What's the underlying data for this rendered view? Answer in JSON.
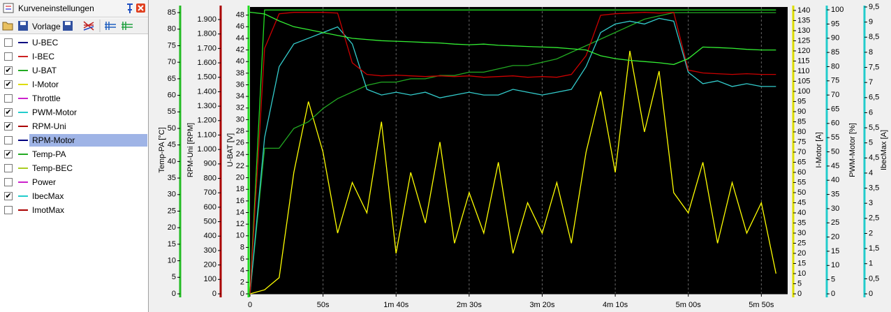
{
  "panel": {
    "title": "Kurveneinstellungen",
    "template_button": "Vorlage",
    "selected": 7,
    "items": [
      {
        "name": "U-BEC",
        "checked": false,
        "color": "#000080"
      },
      {
        "name": "I-BEC",
        "checked": false,
        "color": "#cc2222"
      },
      {
        "name": "U-BAT",
        "checked": true,
        "color": "#22aa22"
      },
      {
        "name": "I-Motor",
        "checked": true,
        "color": "#dddd00"
      },
      {
        "name": "Throttle",
        "checked": false,
        "color": "#cc22cc"
      },
      {
        "name": "PWM-Motor",
        "checked": true,
        "color": "#22cccc"
      },
      {
        "name": "RPM-Uni",
        "checked": true,
        "color": "#aa0000"
      },
      {
        "name": "RPM-Motor",
        "checked": false,
        "color": "#000080"
      },
      {
        "name": "Temp-PA",
        "checked": true,
        "color": "#22aa22"
      },
      {
        "name": "Temp-BEC",
        "checked": false,
        "color": "#aacc22"
      },
      {
        "name": "Power",
        "checked": false,
        "color": "#cc22cc"
      },
      {
        "name": "IbecMax",
        "checked": true,
        "color": "#22cccc"
      },
      {
        "name": "ImotMax",
        "checked": false,
        "color": "#aa0000"
      }
    ]
  },
  "chart_data": {
    "type": "line",
    "xlim": [
      0,
      368
    ],
    "xticks": [
      0,
      {
        "value": 50,
        "label": "50s"
      },
      {
        "value": 100,
        "label": "1m 40s"
      },
      {
        "value": 150,
        "label": "2m 30s"
      },
      {
        "value": 200,
        "label": "3m 20s"
      },
      {
        "value": 250,
        "label": "4m 10s"
      },
      {
        "value": 300,
        "label": "5m 00s"
      },
      {
        "value": 350,
        "label": "5m 50s"
      }
    ],
    "grid": true,
    "axes": [
      {
        "label": "Temp-PA [°C]",
        "color": "#22bb22",
        "ylim": [
          0,
          86.7
        ],
        "yticks": [
          0,
          5,
          10,
          15,
          20,
          25,
          30,
          35,
          40,
          45,
          50,
          55,
          60,
          65,
          70,
          75,
          80,
          85
        ]
      },
      {
        "label": "RPM-Uni [RPM]",
        "color": "#aa0000",
        "ylim": [
          0,
          1987
        ],
        "yticks": [
          0,
          100,
          200,
          300,
          400,
          500,
          600,
          700,
          800,
          900,
          {
            "value": 1000,
            "label": "1.000"
          },
          {
            "value": 1100,
            "label": "1.100"
          },
          {
            "value": 1200,
            "label": "1.200"
          },
          {
            "value": 1300,
            "label": "1.300"
          },
          {
            "value": 1400,
            "label": "1.400"
          },
          {
            "value": 1500,
            "label": "1.500"
          },
          {
            "value": 1600,
            "label": "1.600"
          },
          {
            "value": 1700,
            "label": "1.700"
          },
          {
            "value": 1800,
            "label": "1.800"
          },
          {
            "value": 1900,
            "label": "1.900"
          }
        ]
      },
      {
        "label": "U-BAT [V]",
        "color": "#22dd22",
        "ylim": [
          0,
          49.4
        ],
        "yticks": [
          0,
          2,
          4,
          6,
          8,
          10,
          12,
          14,
          16,
          18,
          20,
          22,
          24,
          26,
          28,
          30,
          32,
          34,
          36,
          38,
          40,
          42,
          44,
          46,
          48
        ]
      },
      {
        "label": "I-Motor [A]",
        "color": "#dddd00",
        "ylim": [
          0,
          141.7
        ],
        "yticks": [
          0,
          5,
          10,
          15,
          20,
          25,
          30,
          35,
          40,
          45,
          50,
          55,
          60,
          65,
          70,
          75,
          80,
          85,
          90,
          95,
          100,
          105,
          110,
          115,
          120,
          125,
          130,
          135,
          140
        ]
      },
      {
        "label": "PWM-Motor [%]",
        "color": "#22cccc",
        "ylim": [
          0,
          101
        ],
        "yticks": [
          0,
          5,
          10,
          15,
          20,
          25,
          30,
          35,
          40,
          45,
          50,
          55,
          60,
          65,
          70,
          75,
          80,
          85,
          90,
          95,
          100
        ]
      },
      {
        "label": "IbecMax [A]",
        "color": "#22cccc",
        "ylim": [
          0,
          9.5
        ],
        "yticks": [
          0,
          {
            "value": 0.5,
            "label": "0,5"
          },
          1,
          {
            "value": 1.5,
            "label": "1,5"
          },
          2,
          {
            "value": 2.5,
            "label": "2,5"
          },
          3,
          {
            "value": 3.5,
            "label": "3,5"
          },
          4,
          {
            "value": 4.5,
            "label": "4,5"
          },
          5,
          {
            "value": 5.5,
            "label": "5,5"
          },
          6,
          {
            "value": 6.5,
            "label": "6,5"
          },
          7,
          {
            "value": 7.5,
            "label": "7,5"
          },
          8,
          {
            "value": 8.5,
            "label": "8,5"
          },
          9,
          {
            "value": 9.5,
            "label": "9,5"
          }
        ]
      }
    ],
    "x": [
      0,
      10,
      20,
      30,
      40,
      50,
      60,
      70,
      80,
      90,
      100,
      110,
      120,
      130,
      140,
      150,
      160,
      170,
      180,
      190,
      200,
      210,
      220,
      230,
      240,
      250,
      260,
      270,
      280,
      290,
      300,
      310,
      320,
      330,
      340,
      350,
      360
    ],
    "series": [
      {
        "name": "I-Motor",
        "axis": 3,
        "color": "#ffff00",
        "values": [
          0,
          2,
          8,
          60,
          95,
          70,
          30,
          55,
          40,
          85,
          20,
          60,
          35,
          75,
          25,
          50,
          30,
          65,
          20,
          45,
          30,
          55,
          25,
          70,
          100,
          60,
          120,
          80,
          110,
          50,
          40,
          65,
          25,
          55,
          30,
          45,
          10
        ]
      },
      {
        "name": "Temp-PA",
        "axis": 0,
        "color": "#22aa22",
        "values": [
          0,
          44,
          44,
          50,
          52,
          56,
          59,
          61,
          63,
          64,
          64,
          65,
          65,
          66,
          66,
          67,
          67,
          68,
          69,
          69,
          70,
          71,
          73,
          75,
          77,
          79,
          81,
          83,
          84,
          85,
          85,
          85,
          85,
          85,
          85,
          85,
          85
        ]
      },
      {
        "name": "IbecMax",
        "axis": 5,
        "color": "#22dd22",
        "values": [
          0,
          9.4,
          9.4,
          9.4,
          9.4,
          9.4,
          9.4,
          9.4,
          9.4,
          9.4,
          9.4,
          9.4,
          9.4,
          9.4,
          9.4,
          9.4,
          9.4,
          9.4,
          9.4,
          9.4,
          9.4,
          9.4,
          9.4,
          9.4,
          9.4,
          9.4,
          9.4,
          9.4,
          9.4,
          9.4,
          9.4,
          9.4,
          9.4,
          9.4,
          9.4,
          9.4,
          9.4
        ]
      },
      {
        "name": "PWM-Motor",
        "axis": 4,
        "color": "#33cccc",
        "values": [
          0,
          55,
          80,
          88,
          90,
          92,
          94,
          88,
          72,
          70,
          71,
          70,
          71,
          69,
          70,
          71,
          70,
          70,
          72,
          71,
          70,
          71,
          72,
          80,
          92,
          95,
          96,
          95,
          97,
          96,
          78,
          74,
          75,
          73,
          74,
          73,
          73
        ]
      },
      {
        "name": "RPM-Uni",
        "axis": 1,
        "color": "#cc0000",
        "values": [
          0,
          1700,
          1940,
          1950,
          1950,
          1950,
          1945,
          1600,
          1520,
          1510,
          1515,
          1510,
          1505,
          1510,
          1505,
          1510,
          1500,
          1505,
          1510,
          1500,
          1505,
          1500,
          1520,
          1650,
          1930,
          1940,
          1945,
          1950,
          1945,
          1950,
          1550,
          1530,
          1525,
          1520,
          1525,
          1520,
          1520
        ]
      },
      {
        "name": "U-BAT",
        "axis": 2,
        "color": "#33ee33",
        "values": [
          48.5,
          48.2,
          47,
          46,
          45.5,
          45,
          44.5,
          44,
          43.8,
          43.6,
          43.5,
          43.4,
          43.3,
          43.2,
          43,
          42.9,
          43,
          42.8,
          42.7,
          42.6,
          42.5,
          42.4,
          42.2,
          42,
          41,
          40.5,
          40.2,
          40,
          39.8,
          39.5,
          40.5,
          42.5,
          42.4,
          42.3,
          42.1,
          42,
          42
        ]
      }
    ]
  }
}
